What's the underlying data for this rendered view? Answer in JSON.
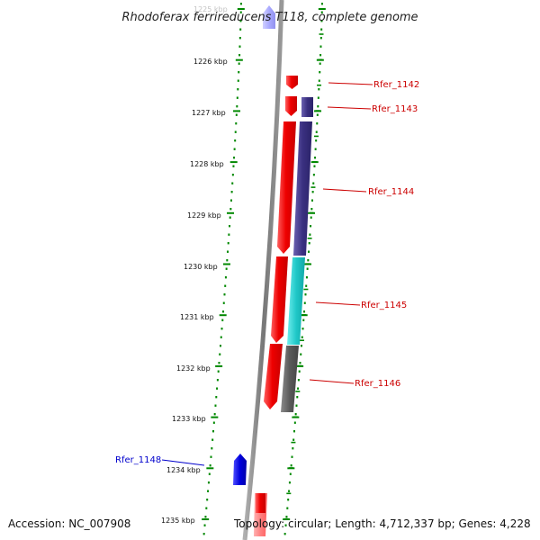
{
  "title": "Rhodoferax ferrireducens T118, complete genome",
  "footer": {
    "accession": "Accession: NC_007908",
    "topology": "Topology: circular; Length: 4,712,337 bp; Genes: 4,228"
  },
  "ticks": [
    "1225 kbp",
    "1226 kbp",
    "1227 kbp",
    "1228 kbp",
    "1229 kbp",
    "1230 kbp",
    "1231 kbp",
    "1232 kbp",
    "1233 kbp",
    "1234 kbp",
    "1235 kbp"
  ],
  "gene_labels": {
    "rfer_1142": "Rfer_1142",
    "rfer_1143": "Rfer_1143",
    "rfer_1144": "Rfer_1144",
    "rfer_1145": "Rfer_1145",
    "rfer_1146": "Rfer_1146",
    "rfer_1148": "Rfer_1148"
  },
  "colors": {
    "forward_gene": "#ee0000",
    "reverse_gene_blue": "#0000dd",
    "reverse_gene_pale": "#aaaaff",
    "navy_gene": "#3a3080",
    "cyan_gene": "#20c8c8",
    "gray_gene": "#5a5a5a",
    "backbone": "#888888",
    "dots": "#008800"
  }
}
